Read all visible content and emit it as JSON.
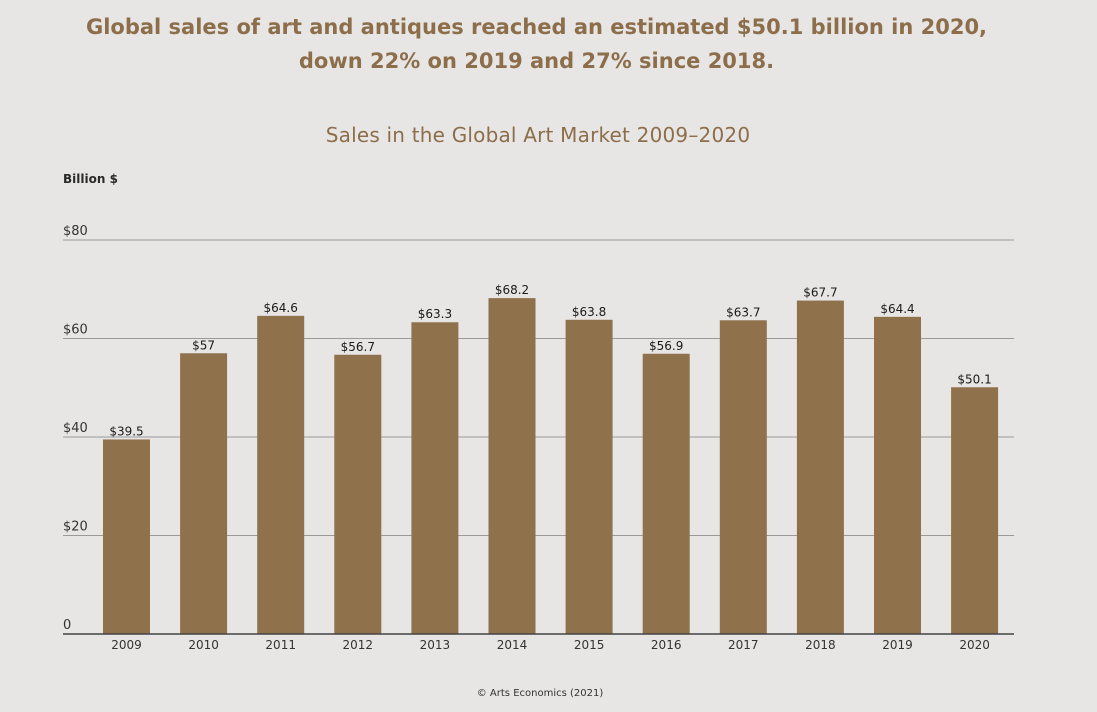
{
  "headline": {
    "line1": "Global sales of art and antiques reached an estimated $50.1 billion in 2020,",
    "line2": "down 22% on 2019 and 27% since 2018."
  },
  "source": "© Arts Economics (2021)",
  "colors": {
    "bar": "#8f714c",
    "accent": "#8c6e4b",
    "grid": "#9a9a9a",
    "background": "#e7e6e5"
  },
  "chart_data": {
    "type": "bar",
    "title": "Sales in the Global Art Market 2009–2020",
    "ylabel": "Billion $",
    "xlabel": "",
    "ylim": [
      0,
      80
    ],
    "yticks": [
      0,
      20,
      40,
      60,
      80
    ],
    "ytick_labels": [
      "0",
      "$20",
      "$40",
      "$60",
      "$80"
    ],
    "grid": true,
    "categories": [
      "2009",
      "2010",
      "2011",
      "2012",
      "2013",
      "2014",
      "2015",
      "2016",
      "2017",
      "2018",
      "2019",
      "2020"
    ],
    "values": [
      39.5,
      57,
      64.6,
      56.7,
      63.3,
      68.2,
      63.8,
      56.9,
      63.7,
      67.7,
      64.4,
      50.1
    ],
    "data_labels": [
      "$39.5",
      "$57",
      "$64.6",
      "$56.7",
      "$63.3",
      "$68.2",
      "$63.8",
      "$56.9",
      "$63.7",
      "$67.7",
      "$64.4",
      "$50.1"
    ]
  }
}
